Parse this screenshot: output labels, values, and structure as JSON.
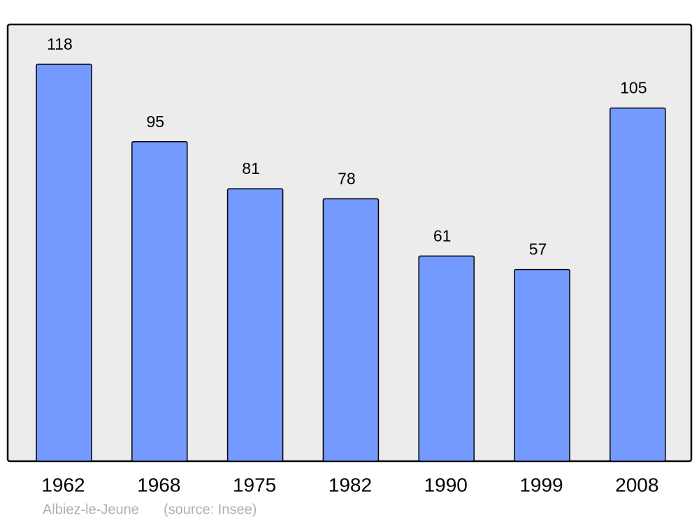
{
  "chart_data": {
    "type": "bar",
    "categories": [
      "1962",
      "1968",
      "1975",
      "1982",
      "1990",
      "1999",
      "2008"
    ],
    "values": [
      118,
      95,
      81,
      78,
      61,
      57,
      105
    ],
    "color": "#7499ff",
    "footer": "Albiez-le-Jeune",
    "source": "(source: Insee)"
  }
}
